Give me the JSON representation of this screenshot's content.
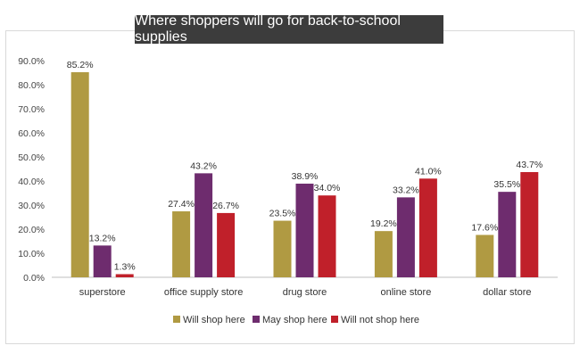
{
  "chart_data": {
    "type": "bar",
    "title": "Where shoppers will go for back-to-school supplies",
    "xlabel": "",
    "ylabel": "",
    "ylim": [
      0,
      90
    ],
    "yticks": [
      "0.0%",
      "10.0%",
      "20.0%",
      "30.0%",
      "40.0%",
      "50.0%",
      "60.0%",
      "70.0%",
      "80.0%",
      "90.0%"
    ],
    "grid": false,
    "legend_position": "bottom",
    "categories": [
      "superstore",
      "office supply store",
      "drug store",
      "online store",
      "dollar store"
    ],
    "series": [
      {
        "name": "Will shop here",
        "color": "#b09a42",
        "values": [
          85.2,
          27.4,
          23.5,
          19.2,
          17.6
        ],
        "labels": [
          "85.2%",
          "27.4%",
          "23.5%",
          "19.2%",
          "17.6%"
        ]
      },
      {
        "name": "May shop here",
        "color": "#6e2c6e",
        "values": [
          13.2,
          43.2,
          38.9,
          33.2,
          35.5
        ],
        "labels": [
          "13.2%",
          "43.2%",
          "38.9%",
          "33.2%",
          "35.5%"
        ]
      },
      {
        "name": "Will not shop here",
        "color": "#c0202a",
        "values": [
          1.3,
          26.7,
          34.0,
          41.0,
          43.7
        ],
        "labels": [
          "1.3%",
          "26.7%",
          "34.0%",
          "41.0%",
          "43.7%"
        ]
      }
    ]
  }
}
